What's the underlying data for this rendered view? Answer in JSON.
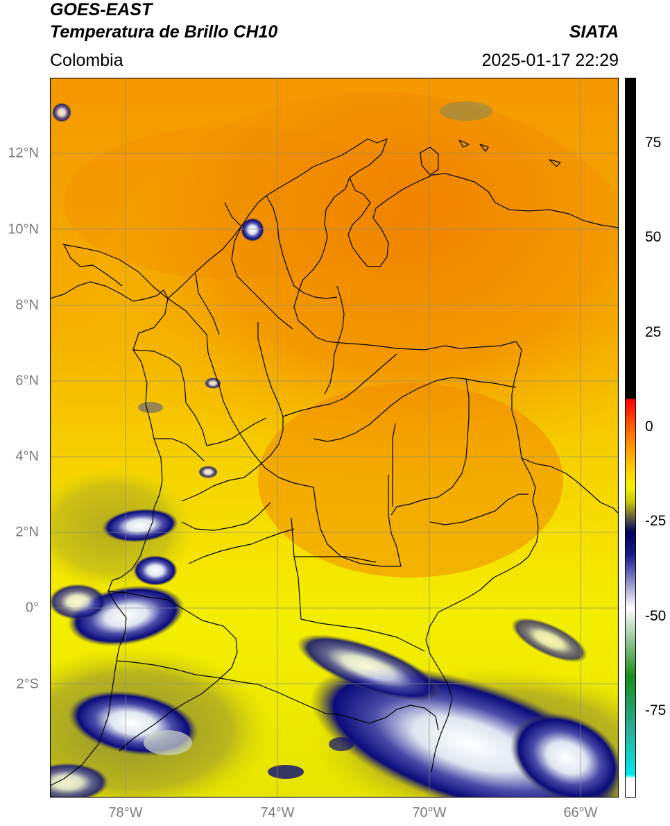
{
  "header": {
    "satellite": "GOES-EAST",
    "product": "Temperatura de Brillo CH10",
    "region": "Colombia",
    "agency": "SIATA",
    "datetime": "2025-01-17 22:29"
  },
  "map": {
    "extent": {
      "lon_min": -80,
      "lon_max": -65,
      "lat_min": -5,
      "lat_max": 14
    },
    "lat_ticks": [
      {
        "value": 12,
        "label": "12°N"
      },
      {
        "value": 10,
        "label": "10°N"
      },
      {
        "value": 8,
        "label": "8°N"
      },
      {
        "value": 6,
        "label": "6°N"
      },
      {
        "value": 4,
        "label": "4°N"
      },
      {
        "value": 2,
        "label": "2°N"
      },
      {
        "value": 0,
        "label": "0°"
      },
      {
        "value": -2,
        "label": "2°S"
      }
    ],
    "lon_ticks": [
      {
        "value": -78,
        "label": "78°W"
      },
      {
        "value": -74,
        "label": "74°W"
      },
      {
        "value": -70,
        "label": "70°W"
      },
      {
        "value": -66,
        "label": "66°W"
      }
    ],
    "gridlines": true,
    "colors": {
      "warm_orange": "#f08a00",
      "yellow": "#f5f000",
      "cloud_navy": "#0a0a7a",
      "cloud_white": "#ffffff",
      "border": "#000000"
    }
  },
  "colorbar": {
    "min": -97,
    "max": 93,
    "ticks": [
      {
        "value": 75,
        "label": "75"
      },
      {
        "value": 50,
        "label": "50"
      },
      {
        "value": 25,
        "label": "25"
      },
      {
        "value": 0,
        "label": "0"
      },
      {
        "value": -25,
        "label": "-25"
      },
      {
        "value": -50,
        "label": "-50"
      },
      {
        "value": -75,
        "label": "-75"
      }
    ],
    "stops": [
      {
        "v": 93,
        "c": "#000000"
      },
      {
        "v": 8.5,
        "c": "#000000"
      },
      {
        "v": 8,
        "c": "#ff0000"
      },
      {
        "v": 0,
        "c": "#ff6a00"
      },
      {
        "v": -10,
        "c": "#ffcc00"
      },
      {
        "v": -15,
        "c": "#f7f000"
      },
      {
        "v": -19,
        "c": "#c8c400"
      },
      {
        "v": -23,
        "c": "#606040"
      },
      {
        "v": -27,
        "c": "#000060"
      },
      {
        "v": -33,
        "c": "#1a1a8a"
      },
      {
        "v": -40,
        "c": "#8c8cc8"
      },
      {
        "v": -47,
        "c": "#ffffff"
      },
      {
        "v": -55,
        "c": "#9ac89a"
      },
      {
        "v": -65,
        "c": "#1a8c1a"
      },
      {
        "v": -80,
        "c": "#2ab0a0"
      },
      {
        "v": -91,
        "c": "#00eaea"
      },
      {
        "v": -92,
        "c": "#ffffff"
      },
      {
        "v": -97,
        "c": "#ffffff"
      }
    ]
  }
}
